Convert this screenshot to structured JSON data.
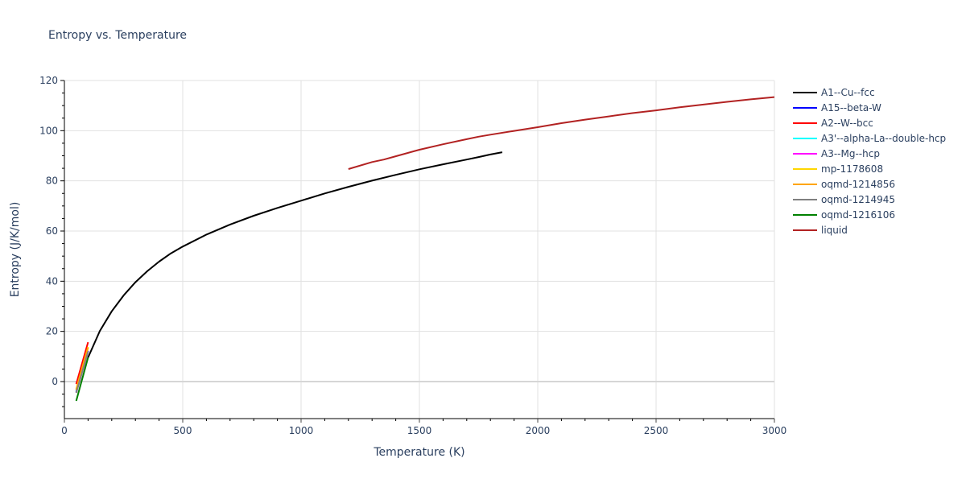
{
  "chart_data": {
    "type": "line",
    "title": "Entropy vs. Temperature",
    "xlabel": "Temperature (K)",
    "ylabel": "Entropy (J/K/mol)",
    "xlim": [
      0,
      3000
    ],
    "ylim": [
      -15,
      120
    ],
    "x_ticks": [
      0,
      500,
      1000,
      1500,
      2000,
      2500,
      3000
    ],
    "y_ticks": [
      0,
      20,
      40,
      60,
      80,
      100,
      120
    ],
    "grid": true,
    "legend_position": "right",
    "series": [
      {
        "name": "A1--Cu--fcc",
        "color": "#000000",
        "x": [
          100,
          150,
          200,
          250,
          300,
          350,
          400,
          450,
          500,
          600,
          700,
          800,
          900,
          1000,
          1100,
          1200,
          1300,
          1400,
          1500,
          1600,
          1700,
          1750,
          1800,
          1850
        ],
        "y": [
          9.6,
          20.2,
          28.0,
          34.3,
          39.6,
          44.0,
          47.8,
          51.1,
          53.8,
          58.6,
          62.6,
          66.1,
          69.2,
          72.1,
          75.0,
          77.6,
          80.1,
          82.4,
          84.6,
          86.6,
          88.5,
          89.5,
          90.5,
          91.4
        ]
      },
      {
        "name": "A15--beta-W",
        "color": "#0000ff",
        "x": [
          50,
          100
        ],
        "y": [
          -4.0,
          12.3
        ]
      },
      {
        "name": "A2--W--bcc",
        "color": "#ff0000",
        "x": [
          50,
          100
        ],
        "y": [
          -1.0,
          15.7
        ]
      },
      {
        "name": "A3'--alpha-La--double-hcp",
        "color": "#00ffff",
        "x": [
          50,
          100
        ],
        "y": [
          -4.2,
          12.1
        ]
      },
      {
        "name": "A3--Mg--hcp",
        "color": "#ff00ff",
        "x": [
          50,
          100
        ],
        "y": [
          -4.4,
          12.0
        ]
      },
      {
        "name": "mp-1178608",
        "color": "#ffd700",
        "x": [
          50,
          100
        ],
        "y": [
          -3.0,
          13.8
        ]
      },
      {
        "name": "oqmd-1214856",
        "color": "#ffa500",
        "x": [
          50,
          100
        ],
        "y": [
          -3.3,
          13.5
        ]
      },
      {
        "name": "oqmd-1214945",
        "color": "#808080",
        "x": [
          50,
          100
        ],
        "y": [
          -4.5,
          11.9
        ]
      },
      {
        "name": "oqmd-1216106",
        "color": "#008000",
        "x": [
          50,
          100
        ],
        "y": [
          -7.7,
          9.6
        ]
      },
      {
        "name": "liquid",
        "color": "#b22222",
        "x": [
          1200,
          1300,
          1350,
          1400,
          1500,
          1600,
          1700,
          1750,
          1800,
          1900,
          2000,
          2100,
          2200,
          2300,
          2400,
          2500,
          2600,
          2700,
          2800,
          2900,
          3000
        ],
        "y": [
          84.7,
          87.5,
          88.5,
          89.8,
          92.4,
          94.6,
          96.6,
          97.6,
          98.4,
          99.9,
          101.4,
          103.0,
          104.4,
          105.7,
          107.0,
          108.1,
          109.3,
          110.4,
          111.5,
          112.5,
          113.4
        ]
      }
    ]
  }
}
